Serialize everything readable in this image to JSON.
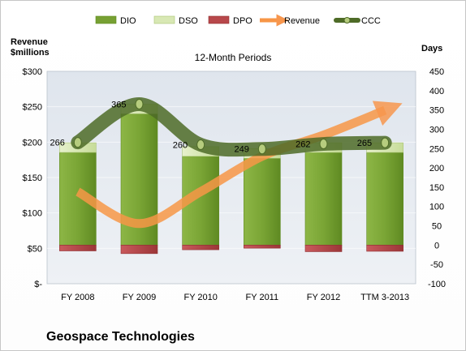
{
  "company": "Geospace Technologies",
  "chart_data": {
    "type": "bar",
    "subtitle": "12-Month Periods",
    "categories": [
      "FY 2008",
      "FY 2009",
      "FY 2010",
      "FY 2011",
      "FY 2012",
      "TTM 3-2013"
    ],
    "left_axis": {
      "label_line1": "Revenue",
      "label_line2": "$millions",
      "min": 0,
      "max": 300,
      "ticks": [
        0,
        50,
        100,
        150,
        200,
        250,
        300
      ],
      "tick_labels": [
        "$-",
        "$50",
        "$100",
        "$150",
        "$200",
        "$250",
        "$300"
      ]
    },
    "right_axis": {
      "label": "Days",
      "min": -100,
      "max": 450,
      "ticks": [
        -100,
        -50,
        0,
        50,
        100,
        150,
        200,
        250,
        300,
        350,
        400,
        450
      ],
      "tick_labels": [
        "-100",
        "-50",
        "0",
        "50",
        "100",
        "150",
        "200",
        "250",
        "300",
        "350",
        "400",
        "450"
      ]
    },
    "legend_position": "top",
    "legend": [
      "DIO",
      "DSO",
      "DPO",
      "Revenue",
      "CCC"
    ],
    "series": [
      {
        "name": "DIO",
        "axis": "right",
        "kind": "bar",
        "color": "#77a033",
        "values": [
          240,
          340,
          230,
          225,
          240,
          240
        ]
      },
      {
        "name": "DSO",
        "axis": "right",
        "kind": "bar",
        "color": "#d8e8b4",
        "values": [
          25,
          25,
          25,
          25,
          25,
          25
        ]
      },
      {
        "name": "DPO",
        "axis": "right",
        "kind": "bar",
        "color": "#b8484b",
        "values": [
          -15,
          -22,
          -12,
          -8,
          -17,
          -16
        ]
      },
      {
        "name": "Revenue",
        "axis": "left",
        "kind": "line",
        "color": "#f79646",
        "values": [
          130,
          85,
          130,
          180,
          210,
          245
        ]
      },
      {
        "name": "CCC",
        "axis": "right",
        "kind": "line",
        "color": "#4e6b27",
        "values": [
          266,
          365,
          260,
          249,
          262,
          265
        ]
      }
    ],
    "ccc_labels": [
      "266",
      "365",
      "260",
      "249",
      "262",
      "265"
    ]
  }
}
